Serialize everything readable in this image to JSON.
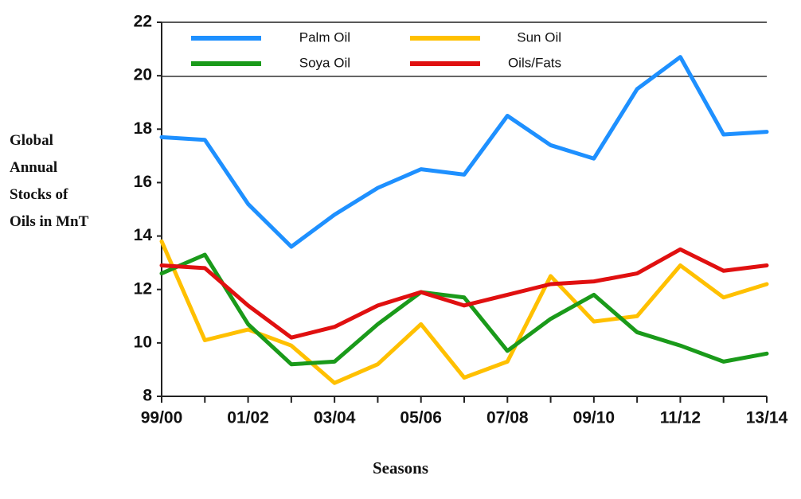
{
  "chart_data": {
    "type": "line",
    "y_label": "Global Annual Stocks of Oils in MnT",
    "x_label": "Seasons",
    "categories": [
      "99/00",
      null,
      "01/02",
      null,
      "03/04",
      null,
      "05/06",
      null,
      "07/08",
      null,
      "09/10",
      null,
      "11/12",
      null,
      "13/14"
    ],
    "series": [
      {
        "name": "Palm Oil",
        "color": "#1e90ff",
        "values": [
          17.7,
          17.6,
          15.2,
          13.6,
          14.8,
          15.8,
          16.5,
          16.3,
          18.5,
          17.4,
          16.9,
          19.5,
          20.7,
          17.8,
          17.9
        ]
      },
      {
        "name": "Sun Oil",
        "color": "#ffc000",
        "values": [
          13.8,
          10.1,
          10.5,
          9.9,
          8.5,
          9.2,
          10.7,
          8.7,
          9.3,
          12.5,
          10.8,
          11.0,
          12.9,
          11.7,
          12.2
        ]
      },
      {
        "name": "Soya Oil",
        "color": "#1a9a1a",
        "values": [
          12.6,
          13.3,
          10.7,
          9.2,
          9.3,
          10.7,
          11.9,
          11.7,
          9.7,
          10.9,
          11.8,
          10.4,
          9.9,
          9.3,
          9.6
        ]
      },
      {
        "name": "Oils/Fats",
        "color": "#e01010",
        "values": [
          12.9,
          12.8,
          11.4,
          10.2,
          10.6,
          11.4,
          11.9,
          11.4,
          11.8,
          12.2,
          12.3,
          12.6,
          13.5,
          12.7,
          12.9
        ]
      }
    ],
    "ylim": [
      8,
      22
    ],
    "yticks": [
      8,
      10,
      12,
      14,
      16,
      18,
      20,
      22
    ],
    "legend": "top"
  }
}
